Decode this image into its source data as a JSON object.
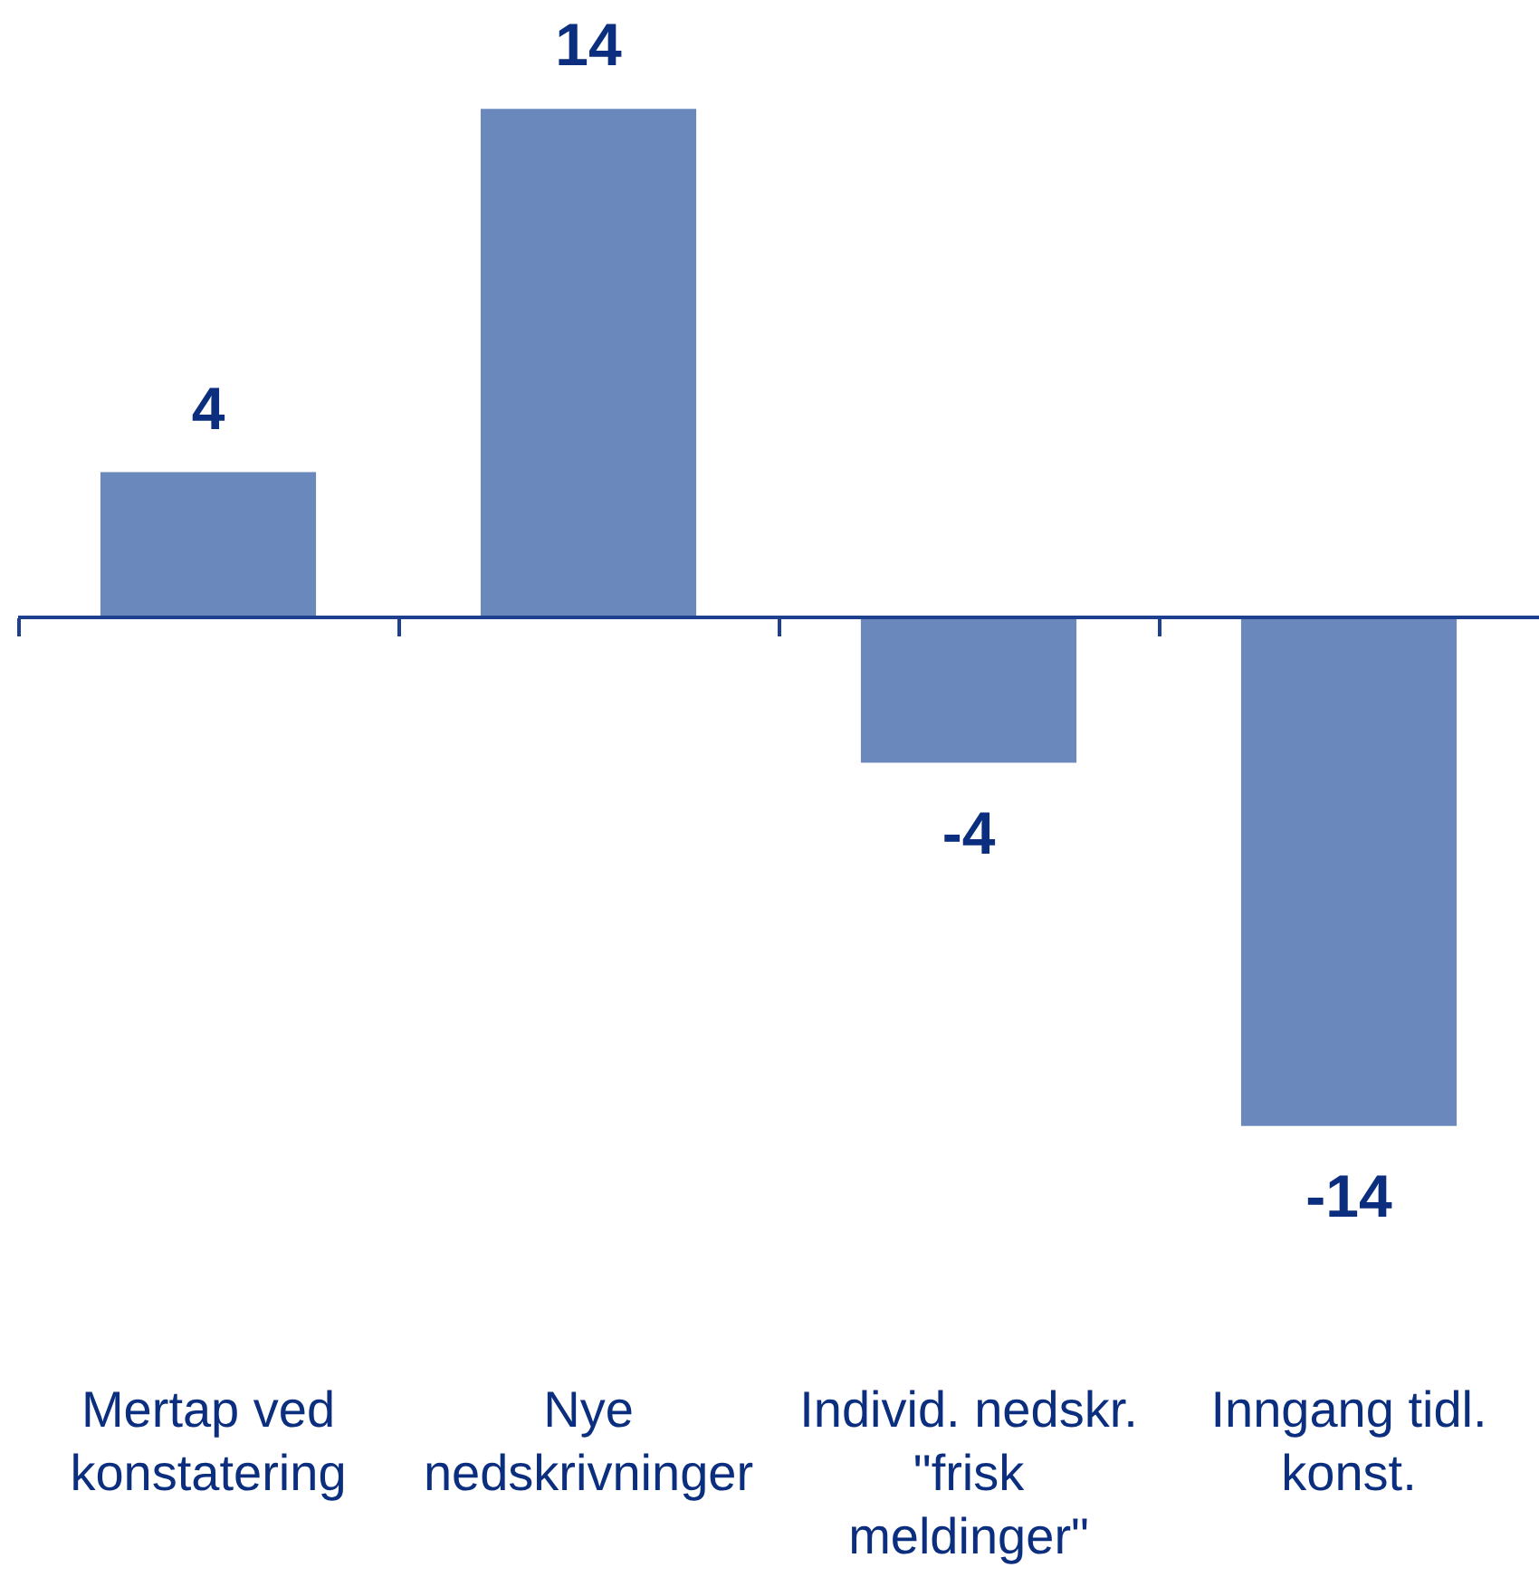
{
  "chart_data": {
    "type": "bar",
    "categories": [
      "Mertap ved konstatering",
      "Nye nedskrivninger",
      "Individ. nedskr. \"frisk meldinger\"",
      "Inngang tidl. konst."
    ],
    "values": [
      4,
      14,
      -4,
      -14
    ],
    "color": "#6a88bc",
    "data_labels": true,
    "tick_labels": "x",
    "ref_lines": [
      {
        "axis": "y",
        "value": 0,
        "color": "#1f3f8f"
      }
    ]
  }
}
